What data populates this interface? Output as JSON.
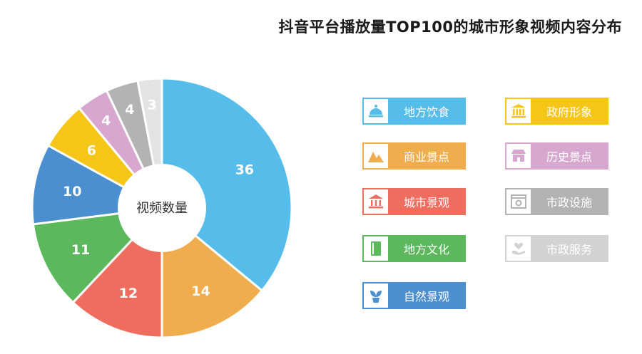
{
  "title": "抖音平台播放量TOP100的城市形象视频内容分布",
  "chart_data": {
    "type": "pie",
    "center_label": "视频数量",
    "slices": [
      {
        "name": "地方饮食",
        "value": 36,
        "color": "#56bdeb"
      },
      {
        "name": "商业景点",
        "value": 14,
        "color": "#f0ad4e"
      },
      {
        "name": "城市景观",
        "value": 12,
        "color": "#ef6d5f"
      },
      {
        "name": "地方文化",
        "value": 11,
        "color": "#5cb85c"
      },
      {
        "name": "自然景观",
        "value": 10,
        "color": "#4b8fd1"
      },
      {
        "name": "政府形象",
        "value": 6,
        "color": "#f5c518"
      },
      {
        "name": "历史景点",
        "value": 4,
        "color": "#d7a7cf"
      },
      {
        "name": "市政设施",
        "value": 4,
        "color": "#b3b3b3"
      },
      {
        "name": "市政服务",
        "value": 3,
        "color": "#e3e3e3"
      }
    ]
  },
  "legend": {
    "items": [
      {
        "label": "地方饮食",
        "color": "#56bdeb",
        "icon": "food-cloche-icon"
      },
      {
        "label": "政府形象",
        "color": "#f5c518",
        "icon": "government-building-icon"
      },
      {
        "label": "商业景点",
        "color": "#f0ad4e",
        "icon": "mountain-icon"
      },
      {
        "label": "历史景点",
        "color": "#d7a7cf",
        "icon": "historic-shop-icon"
      },
      {
        "label": "城市景观",
        "color": "#ef6d5f",
        "icon": "city-landmark-icon"
      },
      {
        "label": "市政设施",
        "color": "#b3b3b3",
        "icon": "facility-gear-icon"
      },
      {
        "label": "地方文化",
        "color": "#5cb85c",
        "icon": "book-icon"
      },
      {
        "label": "市政服务",
        "color": "#d3d3d3",
        "icon": "heart-hand-icon"
      },
      {
        "label": "自然景观",
        "color": "#4b8fd1",
        "icon": "plant-icon"
      }
    ]
  }
}
